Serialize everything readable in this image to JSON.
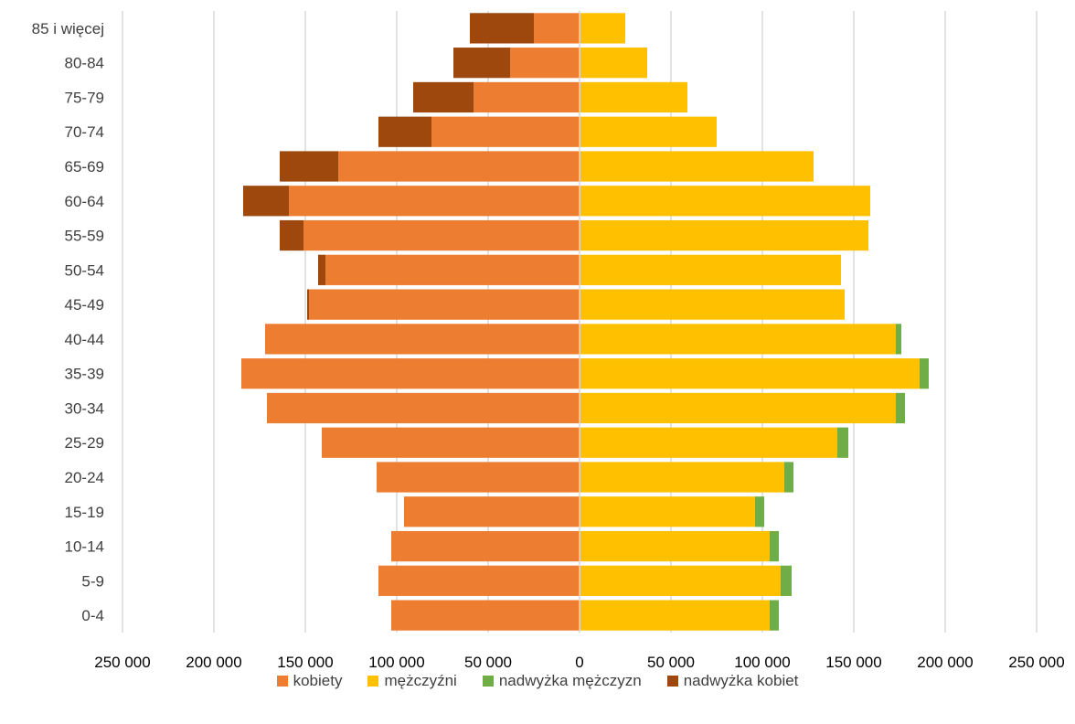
{
  "chart_data": {
    "type": "bar",
    "orientation": "horizontal",
    "title": "",
    "xlabel": "",
    "ylabel": "",
    "categories": [
      "85 i więcej",
      "80-84",
      "75-79",
      "70-74",
      "65-69",
      "60-64",
      "55-59",
      "50-54",
      "45-49",
      "40-44",
      "35-39",
      "30-34",
      "25-29",
      "20-24",
      "15-19",
      "10-14",
      "5-9",
      "0-4"
    ],
    "xlim": [
      -250000,
      250000
    ],
    "xticks": [
      -250000,
      -200000,
      -150000,
      -100000,
      -50000,
      0,
      50000,
      100000,
      150000,
      200000,
      250000
    ],
    "xtick_labels": [
      "250 000",
      "200 000",
      "150 000",
      "100 000",
      "50 000",
      "0",
      "50 000",
      "100 000",
      "150 000",
      "200 000",
      "250 000"
    ],
    "grid": true,
    "legend_position": "bottom",
    "series": [
      {
        "name": "kobiety",
        "side": "left",
        "color": "#ED7D31",
        "values": [
          25000,
          38000,
          58000,
          81000,
          132000,
          159000,
          151000,
          139000,
          148000,
          172000,
          185000,
          171000,
          141000,
          111000,
          96000,
          103000,
          110000,
          103000
        ]
      },
      {
        "name": "mężczyźni",
        "side": "right",
        "color": "#FFC000",
        "values": [
          25000,
          37000,
          59000,
          75000,
          128000,
          159000,
          158000,
          143000,
          145000,
          173000,
          186000,
          173000,
          141000,
          112000,
          96000,
          104000,
          110000,
          104000
        ]
      },
      {
        "name": "nadwyżka mężczyzn",
        "side": "right",
        "color": "#70AD47",
        "values": [
          0,
          0,
          0,
          0,
          0,
          0,
          0,
          0,
          0,
          3000,
          5000,
          5000,
          6000,
          5000,
          5000,
          5000,
          6000,
          5000
        ]
      },
      {
        "name": "nadwyżka kobiet",
        "side": "left",
        "color": "#9E480E",
        "values": [
          35000,
          31000,
          33000,
          29000,
          32000,
          25000,
          13000,
          4000,
          1000,
          0,
          0,
          0,
          0,
          0,
          0,
          0,
          0,
          0
        ]
      }
    ]
  }
}
